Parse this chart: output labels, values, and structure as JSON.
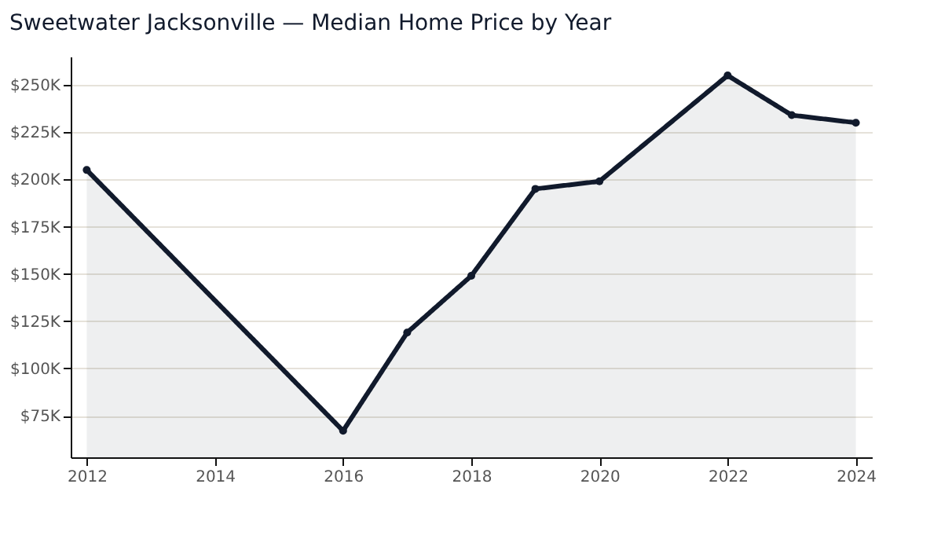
{
  "chart_data": {
    "type": "area",
    "title": "Sweetwater Jacksonville — Median Home Price by Year",
    "x": [
      2012,
      2016,
      2017,
      2018,
      2019,
      2020,
      2022,
      2023,
      2024
    ],
    "series": [
      {
        "color": "#111a2c",
        "values": [
          205000,
          67000,
          119000,
          149000,
          195000,
          199000,
          255000,
          234000,
          230000
        ]
      }
    ],
    "xlim": [
      2011.75,
      2024.25
    ],
    "xticks": [
      2012,
      2014,
      2016,
      2018,
      2020,
      2022,
      2024
    ],
    "ylim": [
      53000,
      265000
    ],
    "yticks": [
      {
        "value": 75000,
        "label": "$75K"
      },
      {
        "value": 100000,
        "label": "$100K"
      },
      {
        "value": 125000,
        "label": "$125K"
      },
      {
        "value": 150000,
        "label": "$150K"
      },
      {
        "value": 175000,
        "label": "$175K"
      },
      {
        "value": 200000,
        "label": "$200K"
      },
      {
        "value": 225000,
        "label": "$225K"
      },
      {
        "value": 250000,
        "label": "$250K"
      }
    ],
    "grid": "y",
    "marker": "circle",
    "line_style": "solid"
  }
}
